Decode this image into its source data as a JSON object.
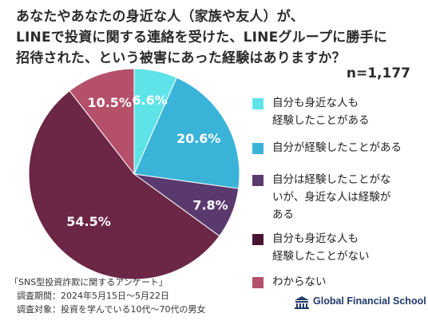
{
  "header": {
    "title_lines": [
      "あなたやあなたの身近な人（家族や友人）が、",
      "LINEで投資に関する連絡を受けた、LINEグループに勝手に",
      "招待された、という被害にあった経験はありますか？"
    ],
    "sample_size": "n=1,177"
  },
  "chart_data": {
    "type": "pie",
    "start_angle_deg": 0,
    "direction": "clockwise",
    "slices": [
      {
        "label": "自分も身近な人も経験したことがある",
        "value": 6.6,
        "display": "6.6%",
        "color": "#5ee3e8",
        "text_color": "#ffffff"
      },
      {
        "label": "自分が経験したことがある",
        "value": 20.6,
        "display": "20.6%",
        "color": "#3ab3d8",
        "text_color": "#ffffff"
      },
      {
        "label": "自分は経験したことがないが、身近な人は経験がある",
        "value": 7.8,
        "display": "7.8%",
        "color": "#5a3a6e",
        "text_color": "#ffffff"
      },
      {
        "label": "自分も身近な人も経験したことがない",
        "value": 54.5,
        "display": "54.5%",
        "color": "#6b2745",
        "text_color": "#ffffff"
      },
      {
        "label": "わからない",
        "value": 10.5,
        "display": "10.5%",
        "color": "#b5506a",
        "text_color": "#ffffff"
      }
    ]
  },
  "legend": {
    "items": [
      {
        "lines": [
          "自分も身近な人も",
          "経験したことがある"
        ],
        "color": "#5ee3e8"
      },
      {
        "lines": [
          "自分が経験したことがある"
        ],
        "color": "#3ab3d8"
      },
      {
        "lines": [
          "自分は経験したことがな",
          "いが、身近な人は経験が",
          "ある"
        ],
        "color": "#5a3a6e"
      },
      {
        "lines": [
          "自分も身近な人も",
          "経験したことがない"
        ],
        "color": "#4a1530"
      },
      {
        "lines": [
          "わからない"
        ],
        "color": "#b5506a"
      }
    ]
  },
  "survey": {
    "name": "「SNS型投資詐欺に関するアンケート」",
    "period": "調査期間：2024年5月15日～5月22日",
    "target": "調査対象：投資を学んでいる10代～70代の男女"
  },
  "brand": {
    "name": "Global Financial School",
    "logo_icon": "school-building-icon",
    "color": "#1f3a68"
  }
}
